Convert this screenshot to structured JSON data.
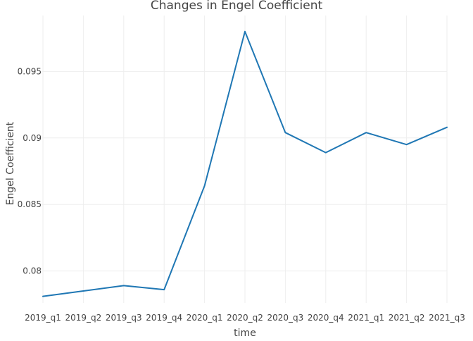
{
  "chart_data": {
    "type": "line",
    "title": "Changes in Engel Coefficient",
    "xlabel": "time",
    "ylabel": "Engel Coefficient",
    "categories": [
      "2019_q1",
      "2019_q2",
      "2019_q3",
      "2019_q4",
      "2020_q1",
      "2020_q2",
      "2020_q3",
      "2020_q4",
      "2021_q1",
      "2021_q2",
      "2021_q3"
    ],
    "series": [
      {
        "values": [
          0.0781,
          0.0785,
          0.0789,
          0.0786,
          0.0864,
          0.098,
          0.0904,
          0.0889,
          0.0904,
          0.0895,
          0.0908
        ]
      }
    ],
    "yticks": [
      0.08,
      0.085,
      0.09,
      0.095
    ],
    "ytick_labels": [
      "0.08",
      "0.085",
      "0.09",
      "0.095"
    ],
    "ylim": [
      0.0776,
      0.0992
    ],
    "grid": true,
    "line_color": "#1f77b4"
  }
}
